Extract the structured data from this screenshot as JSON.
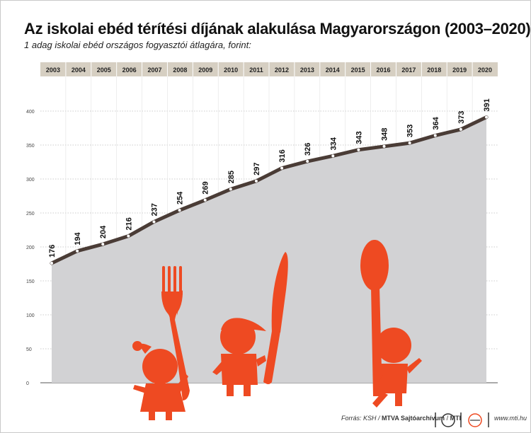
{
  "title": "Az iskolai ebéd térítési díjának alakulása Magyarországon (2003–2020)",
  "subtitle": "1 adag iskolai ebéd országos fogyasztói átlagára, forint:",
  "footer": {
    "source": "Forrás: KSH /",
    "brand": "MTVA Sajtóarchívum",
    "sep": "/",
    "agency": "MTI",
    "website": "www.mti.hu"
  },
  "colors": {
    "area": "#d2d2d4",
    "line": "#4a3c36",
    "header_band": "#d6cfc2",
    "accent": "#ee4a22"
  },
  "chart_data": {
    "type": "area",
    "categories": [
      "2003",
      "2004",
      "2005",
      "2006",
      "2007",
      "2008",
      "2009",
      "2010",
      "2011",
      "2012",
      "2013",
      "2014",
      "2015",
      "2016",
      "2017",
      "2018",
      "2019",
      "2020"
    ],
    "values": [
      176,
      194,
      204,
      216,
      237,
      254,
      269,
      285,
      297,
      316,
      326,
      334,
      343,
      348,
      353,
      364,
      373,
      391
    ],
    "y_ticks": [
      0,
      50,
      100,
      150,
      200,
      250,
      300,
      350,
      400
    ],
    "ylim": [
      0,
      410
    ],
    "grid": "horizontal dashed",
    "x_axis_position": "top band"
  }
}
